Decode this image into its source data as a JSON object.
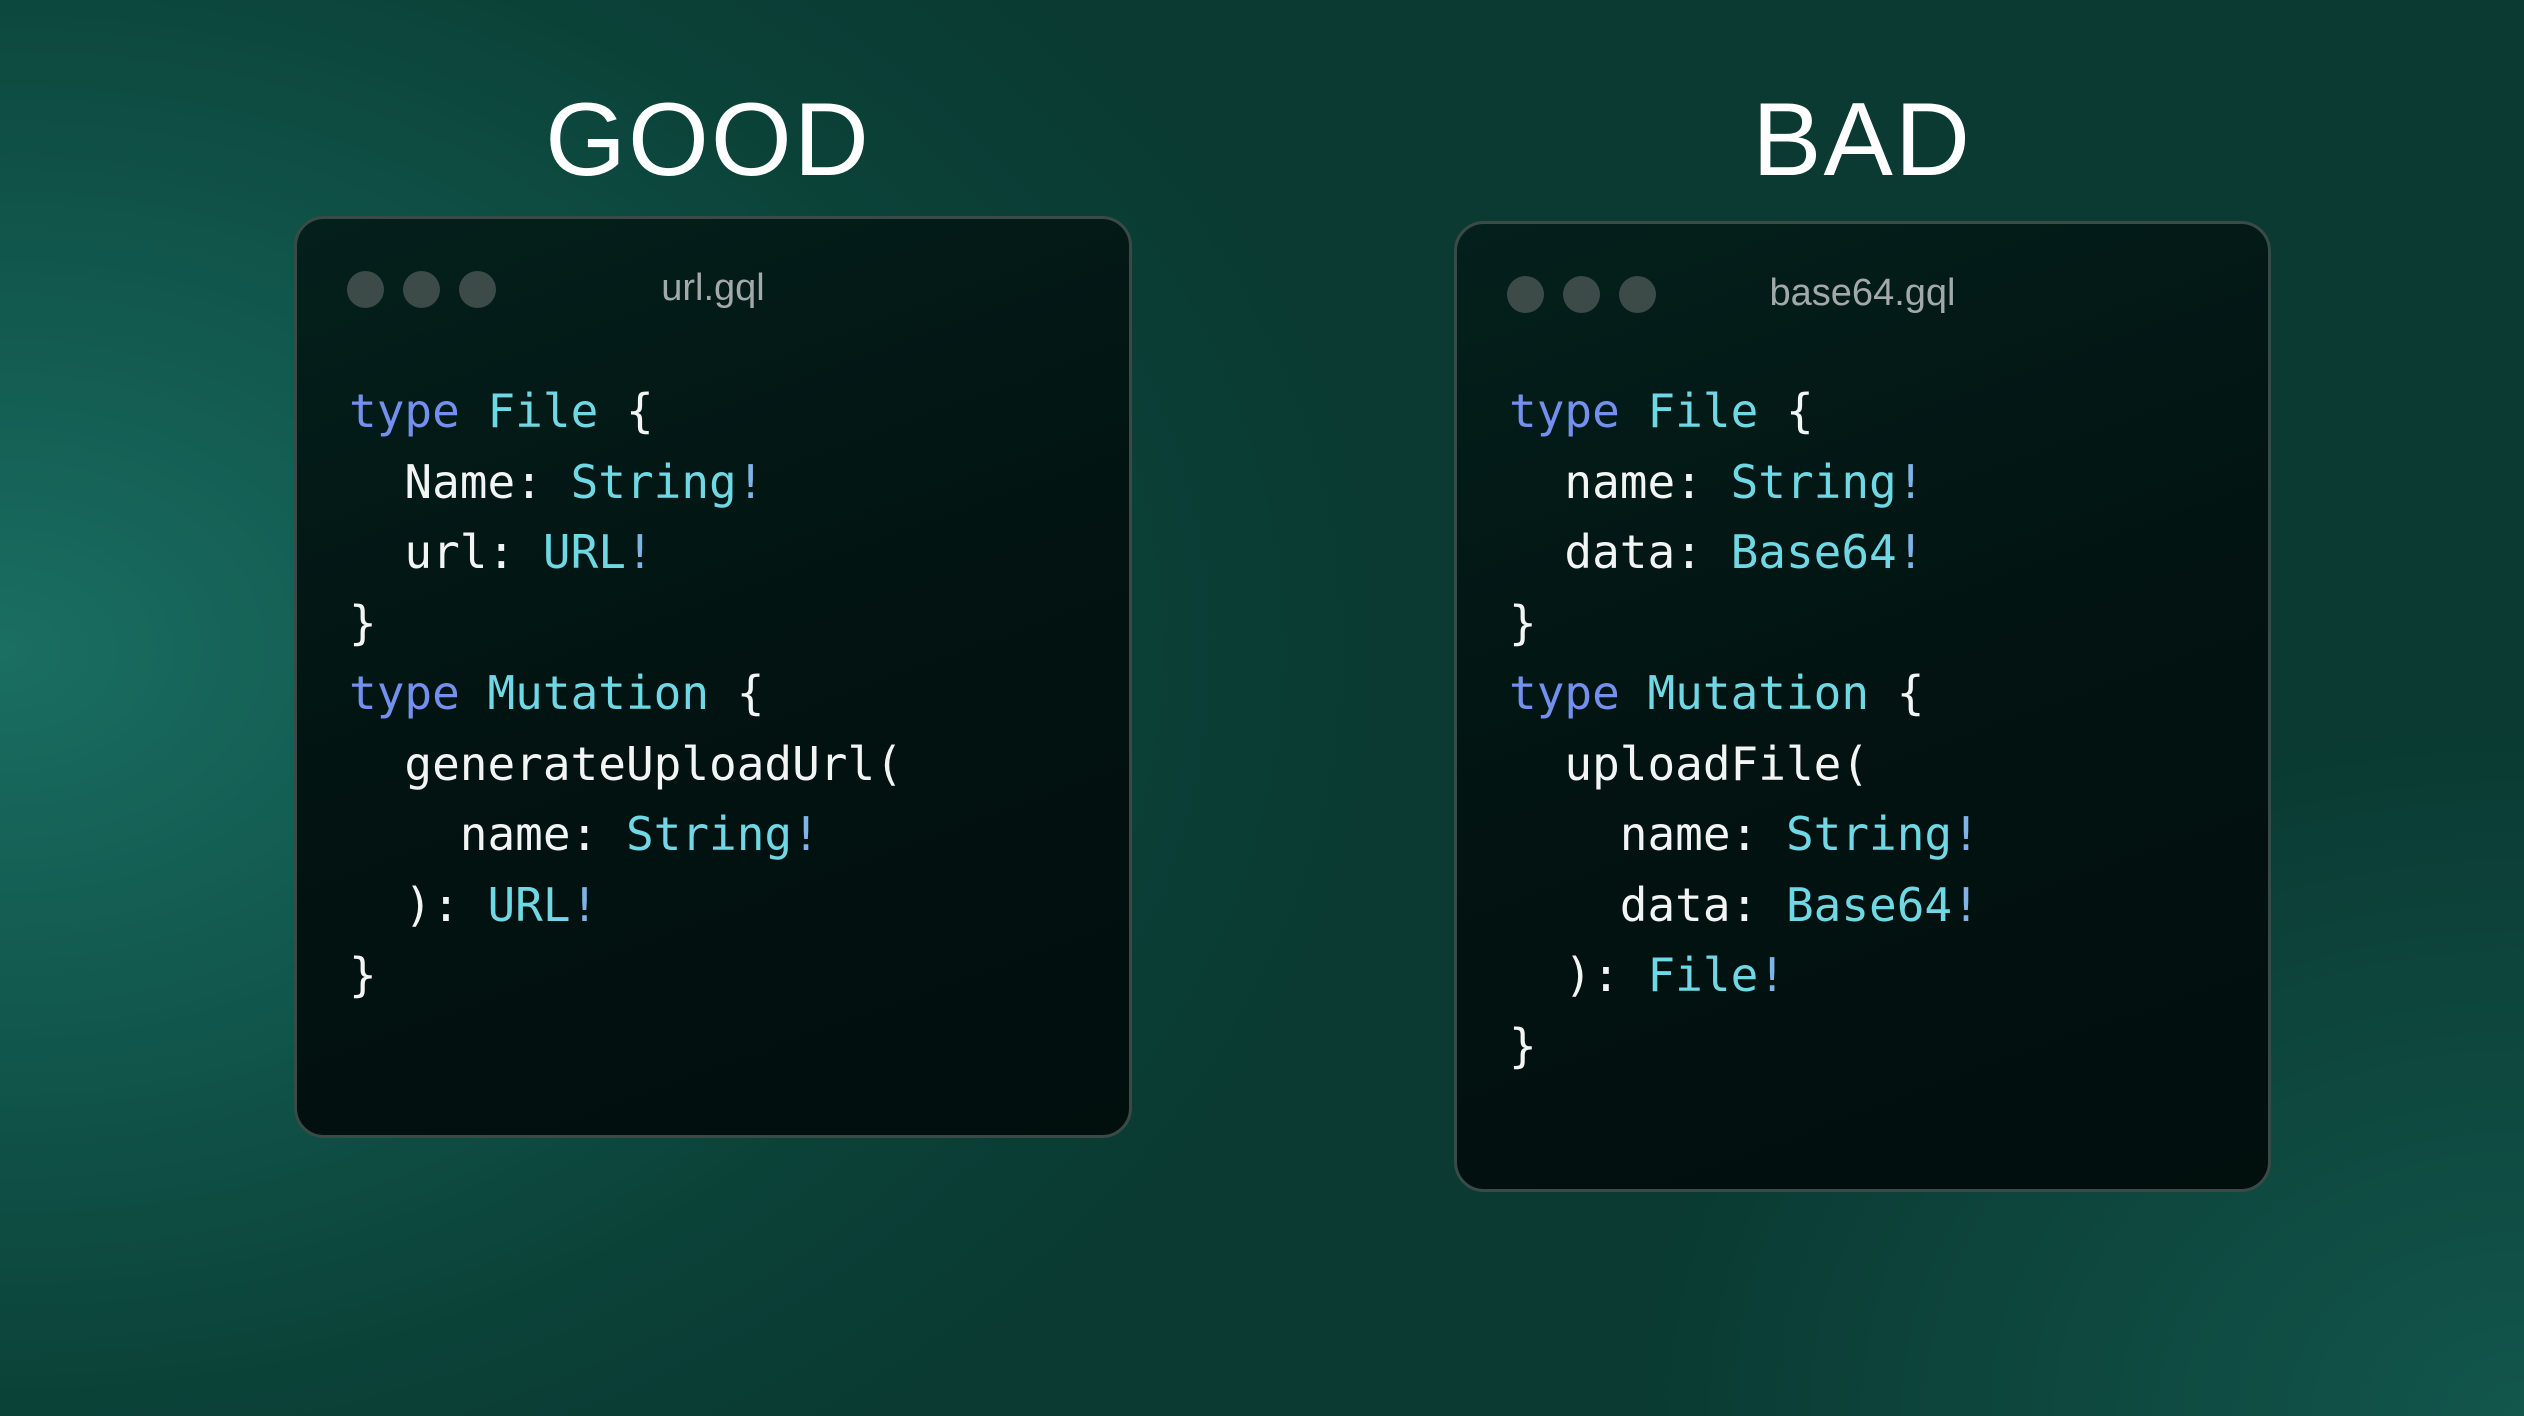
{
  "colors": {
    "kw": "#7390ee",
    "ty": "#6fd8e4",
    "id": "#f3f4f4",
    "p": "#f3f4f4",
    "bang": "#7fb4ea"
  },
  "panels": [
    {
      "heading": "GOOD",
      "filename": "url.gql",
      "lines": [
        [
          {
            "t": "type",
            "c": "kw"
          },
          {
            "t": " "
          },
          {
            "t": "File",
            "c": "ty"
          },
          {
            "t": " {",
            "c": "p"
          }
        ],
        [
          {
            "t": "  Name: ",
            "c": "id"
          },
          {
            "t": "String",
            "c": "ty"
          },
          {
            "t": "!",
            "c": "bang"
          }
        ],
        [
          {
            "t": "  url: ",
            "c": "id"
          },
          {
            "t": "URL",
            "c": "ty"
          },
          {
            "t": "!",
            "c": "bang"
          }
        ],
        [
          {
            "t": "}",
            "c": "p"
          }
        ],
        [
          {
            "t": "type",
            "c": "kw"
          },
          {
            "t": " "
          },
          {
            "t": "Mutation",
            "c": "ty"
          },
          {
            "t": " {",
            "c": "p"
          }
        ],
        [
          {
            "t": "  generateUploadUrl(",
            "c": "id"
          }
        ],
        [
          {
            "t": "    name: ",
            "c": "id"
          },
          {
            "t": "String",
            "c": "ty"
          },
          {
            "t": "!",
            "c": "bang"
          }
        ],
        [
          {
            "t": "  ): ",
            "c": "id"
          },
          {
            "t": "URL",
            "c": "ty"
          },
          {
            "t": "!",
            "c": "bang"
          }
        ],
        [
          {
            "t": "}",
            "c": "p"
          }
        ]
      ]
    },
    {
      "heading": "BAD",
      "filename": "base64.gql",
      "lines": [
        [
          {
            "t": "type",
            "c": "kw"
          },
          {
            "t": " "
          },
          {
            "t": "File",
            "c": "ty"
          },
          {
            "t": " {",
            "c": "p"
          }
        ],
        [
          {
            "t": "  name: ",
            "c": "id"
          },
          {
            "t": "String",
            "c": "ty"
          },
          {
            "t": "!",
            "c": "bang"
          }
        ],
        [
          {
            "t": "  data: ",
            "c": "id"
          },
          {
            "t": "Base64",
            "c": "ty"
          },
          {
            "t": "!",
            "c": "bang"
          }
        ],
        [
          {
            "t": "}",
            "c": "p"
          }
        ],
        [
          {
            "t": "type",
            "c": "kw"
          },
          {
            "t": " "
          },
          {
            "t": "Mutation",
            "c": "ty"
          },
          {
            "t": " {",
            "c": "p"
          }
        ],
        [
          {
            "t": "  uploadFile(",
            "c": "id"
          }
        ],
        [
          {
            "t": "    name: ",
            "c": "id"
          },
          {
            "t": "String",
            "c": "ty"
          },
          {
            "t": "!",
            "c": "bang"
          }
        ],
        [
          {
            "t": "    data: ",
            "c": "id"
          },
          {
            "t": "Base64",
            "c": "ty"
          },
          {
            "t": "!",
            "c": "bang"
          }
        ],
        [
          {
            "t": "  ): ",
            "c": "id"
          },
          {
            "t": "File",
            "c": "ty"
          },
          {
            "t": "!",
            "c": "bang"
          }
        ],
        [
          {
            "t": "}",
            "c": "p"
          }
        ]
      ]
    }
  ]
}
